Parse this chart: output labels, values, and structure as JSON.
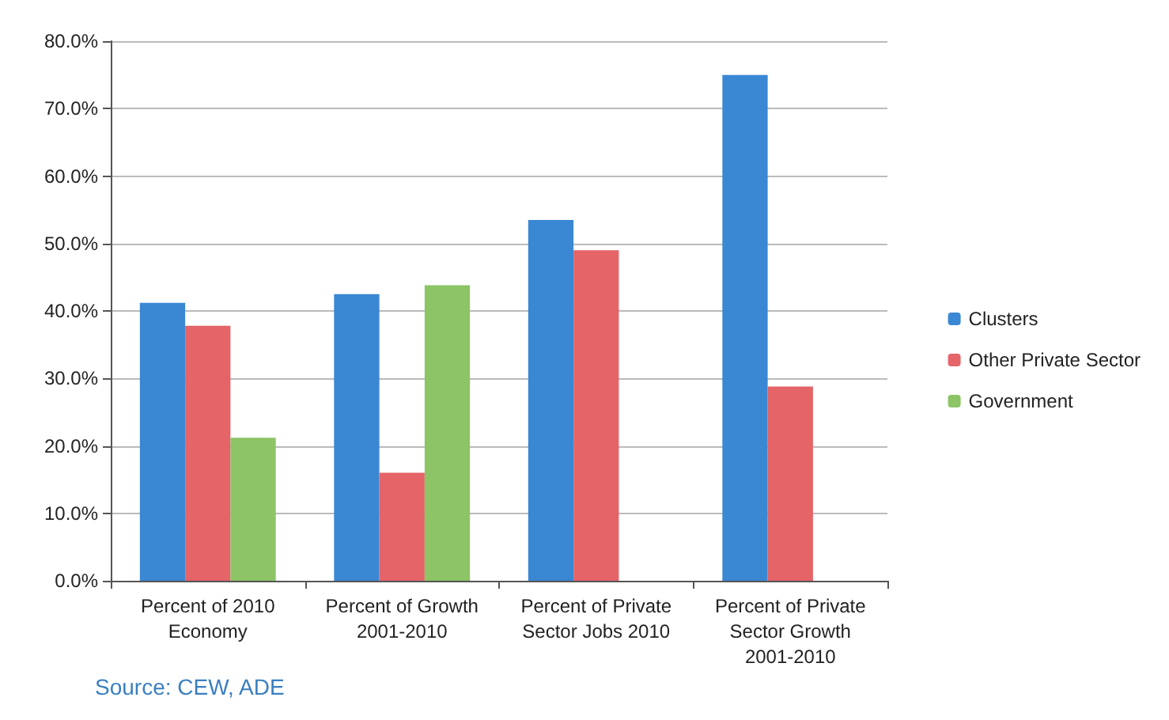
{
  "chart_data": {
    "type": "bar",
    "categories": [
      "Percent of 2010\nEconomy",
      "Percent of Growth\n2001-2010",
      "Percent of Private\nSector Jobs 2010",
      "Percent of Private\nSector Growth\n2001-2010"
    ],
    "series": [
      {
        "name": "Clusters",
        "color": "#3a87d4",
        "values": [
          41.2,
          42.5,
          53.5,
          75.0
        ]
      },
      {
        "name": "Other Private Sector",
        "color": "#e46468",
        "values": [
          37.8,
          16.0,
          49.0,
          28.8
        ]
      },
      {
        "name": "Government",
        "color": "#8cc466",
        "values": [
          21.2,
          43.8,
          null,
          null
        ]
      }
    ],
    "ylim": [
      0,
      80
    ],
    "yticks": [
      {
        "value": 0,
        "label": "0.0%"
      },
      {
        "value": 10,
        "label": "10.0%"
      },
      {
        "value": 20,
        "label": "20.0%"
      },
      {
        "value": 30,
        "label": "30.0%"
      },
      {
        "value": 40,
        "label": "40.0%"
      },
      {
        "value": 50,
        "label": "50.0%"
      },
      {
        "value": 60,
        "label": "60.0%"
      },
      {
        "value": 70,
        "label": "70.0%"
      },
      {
        "value": 80,
        "label": "80.0%"
      }
    ],
    "grid": "y",
    "legend": "right",
    "annotations": [
      "Source: CEW, ADE"
    ]
  }
}
